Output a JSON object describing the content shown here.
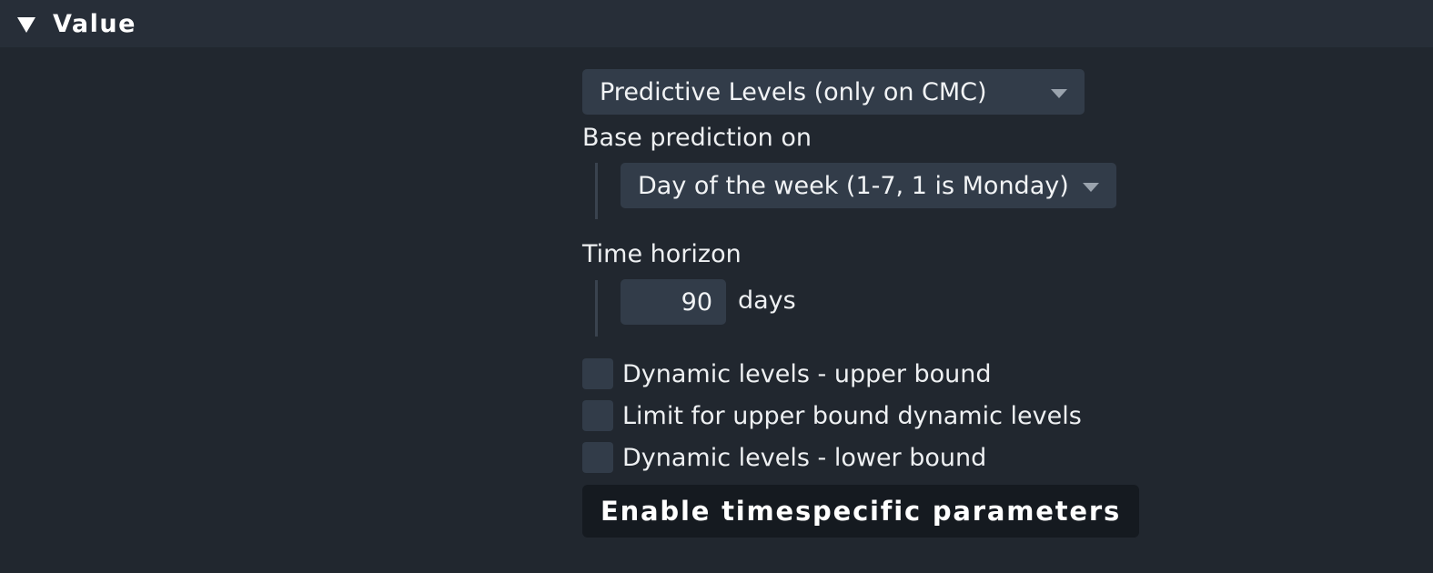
{
  "section": {
    "title": "Value",
    "icon": "triangle-down-icon"
  },
  "form": {
    "levels_type": {
      "selected": "Predictive Levels (only on CMC)"
    },
    "base_prediction": {
      "label": "Base prediction on",
      "selected": "Day of the week (1-7, 1 is Monday)"
    },
    "time_horizon": {
      "label": "Time horizon",
      "value": "90",
      "unit": "days"
    },
    "checkboxes": [
      {
        "label": "Dynamic levels - upper bound",
        "checked": false
      },
      {
        "label": "Limit for upper bound dynamic levels",
        "checked": false
      },
      {
        "label": "Dynamic levels - lower bound",
        "checked": false
      }
    ],
    "button_label": "Enable timespecific parameters"
  },
  "colors": {
    "background": "#21272f",
    "header_background": "#272e38",
    "input_background": "#323c49",
    "button_background": "#151a20"
  }
}
